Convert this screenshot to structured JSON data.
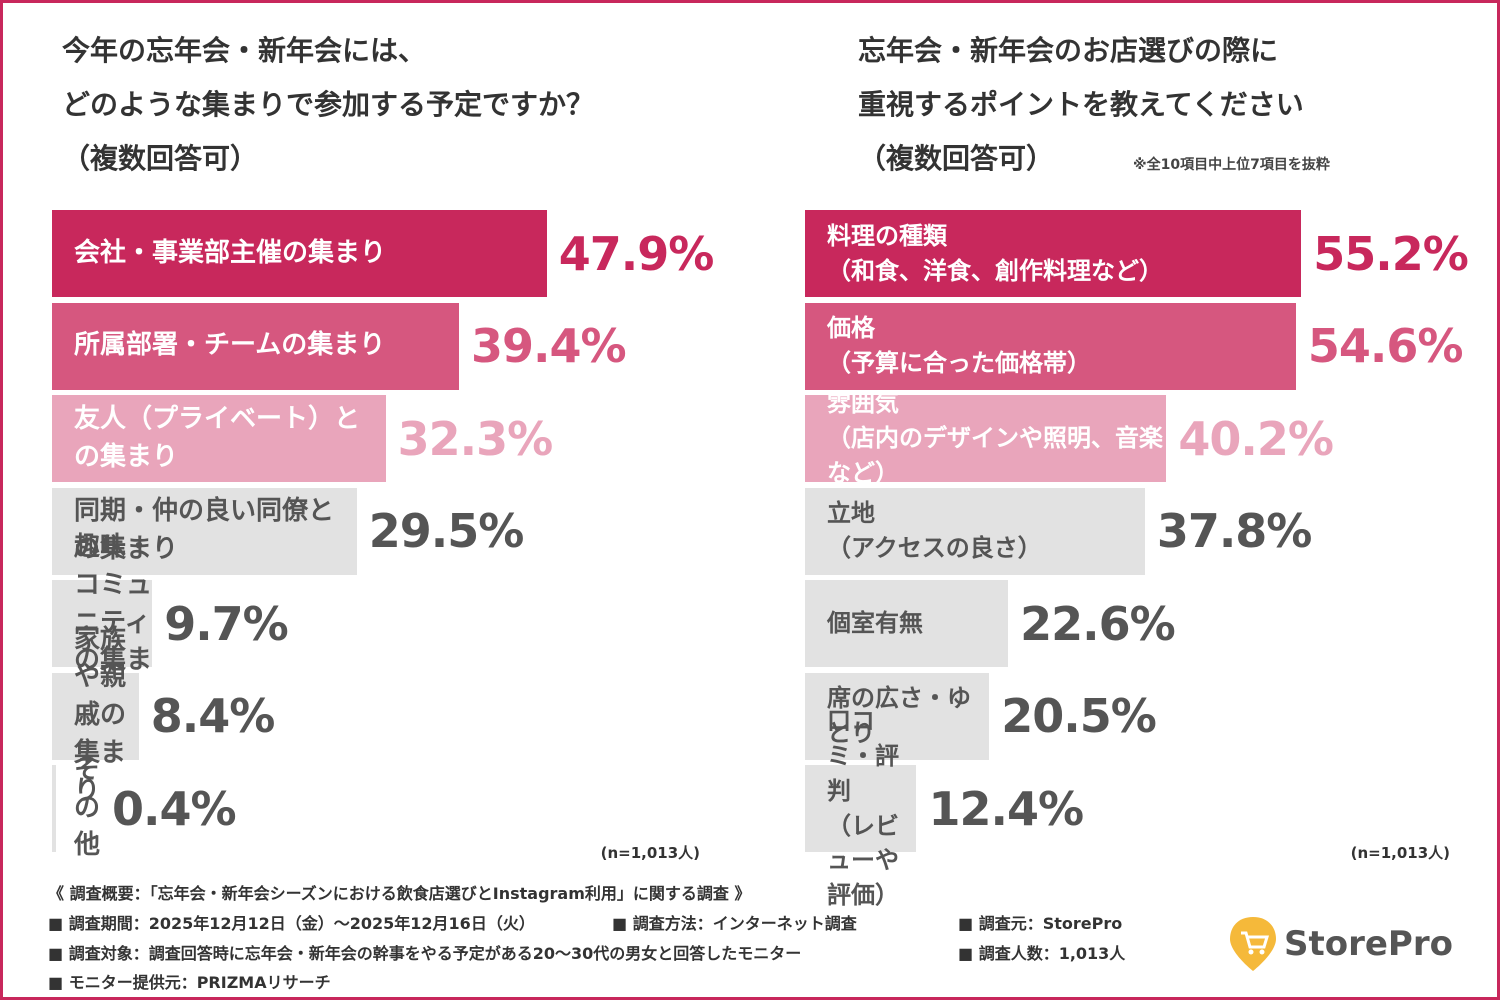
{
  "chart_data": [
    {
      "type": "bar",
      "title": "今年の忘年会・新年会には、\nどのような集まりで参加する予定ですか？\n（複数回答可）",
      "categories": [
        "会社・事業部主催の集まり",
        "所属部署・チームの集まり",
        "友人（プライベート）との集まり",
        "同期・仲の良い同僚との集まり",
        "趣味・コミュニティの集まり",
        "家族や親戚の集まり",
        "その他"
      ],
      "values": [
        47.9,
        39.4,
        32.3,
        29.5,
        9.7,
        8.4,
        0.4
      ],
      "value_labels": [
        "47.9%",
        "39.4%",
        "32.3%",
        "29.5%",
        "9.7%",
        "8.4%",
        "0.4%"
      ],
      "colors": [
        "#c8285c",
        "#d6577f",
        "#e9a5bb",
        "#e2e2e2",
        "#e2e2e2",
        "#e2e2e2",
        "#e2e2e2"
      ],
      "note": "(n=1,013人)"
    },
    {
      "type": "bar",
      "title": "忘年会・新年会のお店選びの際に\n重視するポイントを教えてください\n（複数回答可）",
      "subnote": "※全10項目中上位7項目を抜粋",
      "categories": [
        "料理の種類\n（和食、洋食、創作料理など）",
        "価格\n（予算に合った価格帯）",
        "雰囲気\n（店内のデザインや照明、音楽など）",
        "立地\n（アクセスの良さ）",
        "個室有無",
        "席の広さ・ゆとり",
        "口コミ・評判\n（レビューや評価）"
      ],
      "values": [
        55.2,
        54.6,
        40.2,
        37.8,
        22.6,
        20.5,
        12.4
      ],
      "value_labels": [
        "55.2%",
        "54.6%",
        "40.2%",
        "37.8%",
        "22.6%",
        "20.5%",
        "12.4%"
      ],
      "colors": [
        "#c8285c",
        "#d6577f",
        "#e9a5bb",
        "#e2e2e2",
        "#e2e2e2",
        "#e2e2e2",
        "#e2e2e2"
      ],
      "note": "(n=1,013人)"
    }
  ],
  "footer": {
    "heading": "《 調査概要：「忘年会・新年会シーズンにおける飲食店選びとInstagram利用」に関する調査 》",
    "period": "■ 調査期間：2025年12月12日（金）～2025年12月16日（火）",
    "method": "■ 調査方法：インターネット調査",
    "source": "■ 調査元：StorePro",
    "target": "■ 調査対象：調査回答時に忘年会・新年会の幹事をやる予定がある20～30代の男女と回答したモニター",
    "count": "■ 調査人数：1,013人",
    "provider": "■ モニター提供元：PRIZMAリサーチ"
  },
  "logo": "StorePro"
}
